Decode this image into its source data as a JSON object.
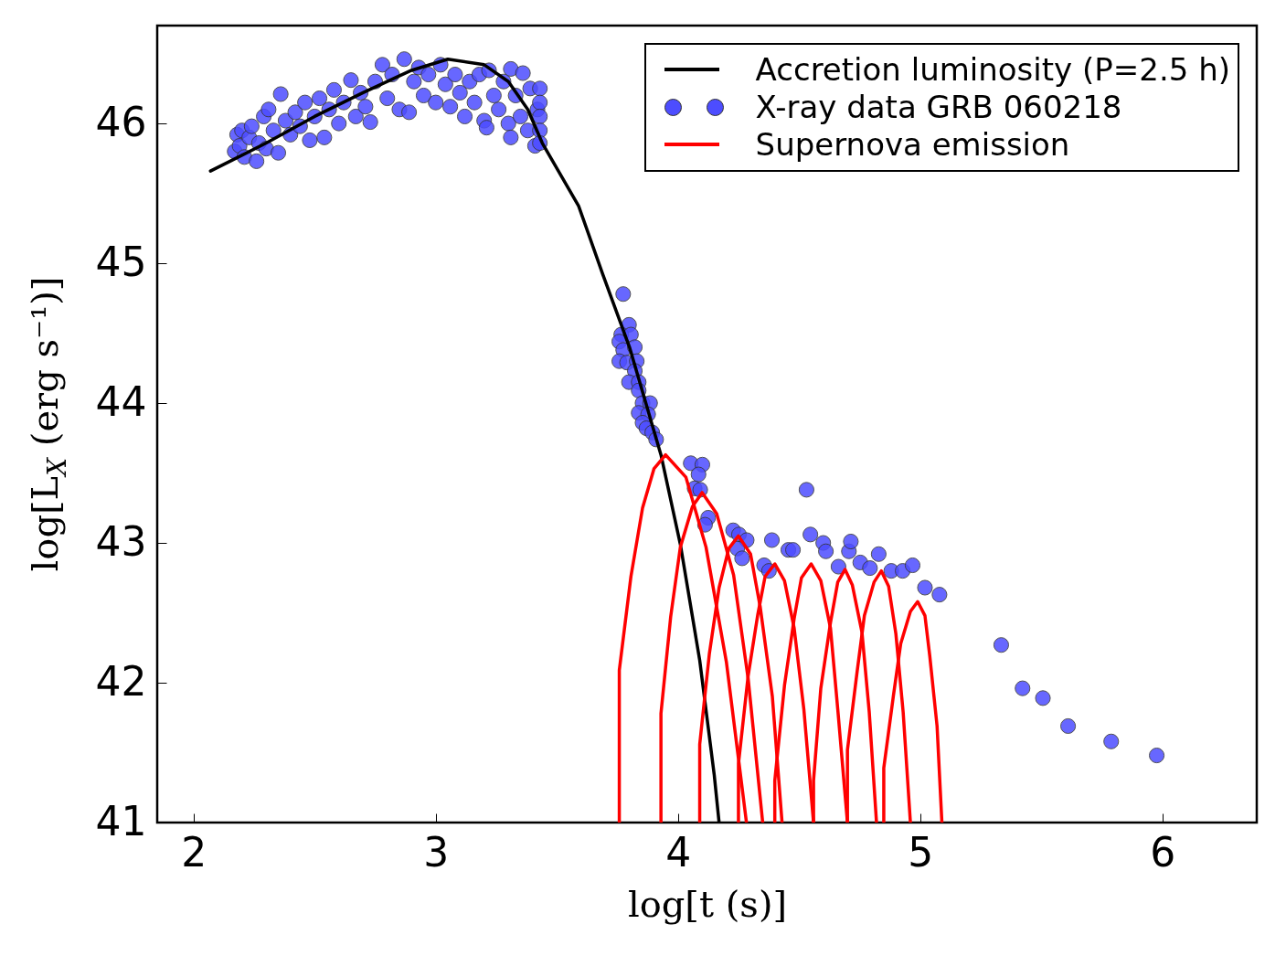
{
  "chart_data": {
    "type": "line",
    "xlabel": "log[t (s)]",
    "ylabel": "log[L$_{X}$ (erg s⁻¹)]",
    "xlim": [
      1.85,
      6.39
    ],
    "ylim": [
      41,
      46.7
    ],
    "xticks": [
      2,
      3,
      4,
      5,
      6
    ],
    "yticks": [
      41,
      42,
      43,
      44,
      45,
      46
    ],
    "grid": false,
    "legend": "top right",
    "series": [
      {
        "name": "Accretion luminosity (P=2.5 h)",
        "color": "#000000",
        "x": [
          2.07,
          2.3,
          2.5,
          2.7,
          2.9,
          3.05,
          3.2,
          3.3,
          3.38,
          3.44,
          3.59,
          3.69,
          3.8,
          3.93,
          4.01,
          4.09,
          4.15,
          4.17
        ],
        "values": [
          45.66,
          45.86,
          46.05,
          46.22,
          46.38,
          46.46,
          46.42,
          46.3,
          46.1,
          45.86,
          45.41,
          44.92,
          44.4,
          43.63,
          42.99,
          42.16,
          41.34,
          41
        ]
      },
      {
        "name": "X-ray data GRB 060218",
        "type": "scatter",
        "marker": "circle",
        "color": "#4d4dff",
        "x": [
          2.17,
          2.18,
          2.19,
          2.2,
          2.21,
          2.23,
          2.24,
          2.26,
          2.27,
          2.29,
          2.3,
          2.31,
          2.33,
          2.35,
          2.36,
          2.38,
          2.4,
          2.42,
          2.44,
          2.46,
          2.48,
          2.5,
          2.52,
          2.54,
          2.56,
          2.58,
          2.6,
          2.62,
          2.65,
          2.67,
          2.69,
          2.71,
          2.73,
          2.75,
          2.78,
          2.8,
          2.82,
          2.85,
          2.87,
          2.89,
          2.91,
          2.93,
          2.95,
          2.97,
          3.0,
          3.02,
          3.04,
          3.06,
          3.08,
          3.1,
          3.12,
          3.14,
          3.16,
          3.18,
          3.2,
          3.21,
          3.22,
          3.24,
          3.26,
          3.28,
          3.3,
          3.31,
          3.31,
          3.33,
          3.35,
          3.36,
          3.38,
          3.39,
          3.41,
          3.42,
          3.43,
          3.43,
          3.43,
          3.43,
          3.43,
          3.774,
          3.798,
          3.766,
          3.806,
          3.758,
          3.774,
          3.822,
          3.758,
          3.79,
          3.83,
          3.822,
          3.798,
          3.838,
          3.838,
          3.854,
          3.885,
          3.838,
          3.877,
          3.854,
          3.87,
          3.894,
          3.91,
          4.053,
          4.101,
          4.085,
          4.069,
          4.092,
          4.125,
          4.112,
          4.228,
          4.252,
          4.284,
          4.245,
          4.265,
          4.388,
          4.356,
          4.376,
          4.456,
          4.475,
          4.531,
          4.547,
          4.6,
          4.611,
          4.663,
          4.706,
          4.714,
          4.753,
          4.793,
          4.829,
          4.881,
          4.928,
          4.969,
          5.02,
          5.08,
          5.335,
          5.423,
          5.507,
          5.611,
          5.789,
          5.977
        ],
        "values": [
          45.8,
          45.92,
          45.84,
          45.95,
          45.76,
          45.9,
          45.98,
          45.73,
          45.86,
          46.05,
          45.82,
          46.1,
          45.95,
          45.79,
          46.21,
          46.02,
          45.92,
          46.08,
          45.98,
          46.15,
          45.88,
          46.05,
          46.18,
          45.9,
          46.1,
          46.24,
          46.0,
          46.15,
          46.31,
          46.05,
          46.22,
          46.12,
          46.01,
          46.3,
          46.42,
          46.18,
          46.35,
          46.1,
          46.46,
          46.08,
          46.3,
          46.4,
          46.2,
          46.35,
          46.15,
          46.42,
          46.28,
          46.12,
          46.35,
          46.22,
          46.05,
          46.3,
          46.15,
          46.35,
          46.02,
          45.97,
          46.38,
          46.2,
          46.1,
          46.3,
          46.0,
          46.39,
          45.9,
          46.2,
          46.05,
          46.36,
          45.95,
          46.25,
          45.84,
          46.1,
          46.25,
          46.15,
          46.05,
          45.95,
          45.86,
          44.78,
          44.56,
          44.49,
          44.49,
          44.44,
          44.38,
          44.4,
          44.3,
          44.29,
          44.3,
          44.23,
          44.15,
          44.15,
          44.09,
          44.0,
          44.0,
          43.93,
          43.92,
          43.86,
          43.82,
          43.79,
          43.74,
          43.57,
          43.56,
          43.49,
          43.39,
          43.38,
          43.18,
          43.13,
          43.09,
          43.06,
          43.02,
          42.96,
          42.89,
          43.02,
          42.84,
          42.8,
          42.95,
          42.95,
          43.38,
          43.06,
          43.0,
          42.94,
          42.83,
          42.94,
          43.01,
          42.86,
          42.82,
          42.92,
          42.8,
          42.8,
          42.84,
          42.68,
          42.63,
          42.27,
          41.96,
          41.89,
          41.69,
          41.58,
          41.48
        ]
      },
      {
        "name": "Supernova emission",
        "color": "#ff0000",
        "x": [
          3.758,
          3.758,
          3.806,
          3.854,
          3.901,
          3.949,
          4.033,
          4.116,
          4.2,
          4.283
        ],
        "values": [
          41,
          42.09,
          42.76,
          43.25,
          43.53,
          43.63,
          43.47,
          42.97,
          42.15,
          41
        ]
      },
      {
        "type": "line",
        "color": "#ff0000",
        "x": [
          3.93,
          3.93,
          3.97,
          4.01,
          4.06,
          4.1,
          4.16,
          4.23,
          4.29,
          4.35
        ],
        "values": [
          41,
          41.78,
          42.47,
          42.97,
          43.26,
          43.36,
          43.21,
          42.77,
          42.03,
          41
        ]
      },
      {
        "type": "line",
        "color": "#ff0000",
        "x": [
          4.09,
          4.09,
          4.13,
          4.17,
          4.21,
          4.25,
          4.3,
          4.34,
          4.39,
          4.43
        ],
        "values": [
          41,
          41.56,
          42.21,
          42.68,
          42.96,
          43.05,
          42.92,
          42.54,
          41.9,
          41
        ]
      },
      {
        "type": "line",
        "color": "#ff0000",
        "x": [
          4.25,
          4.25,
          4.29,
          4.33,
          4.36,
          4.4,
          4.44,
          4.48,
          4.52,
          4.56
        ],
        "values": [
          41,
          41.42,
          42.05,
          42.49,
          42.76,
          42.85,
          42.73,
          42.39,
          41.81,
          41
        ]
      },
      {
        "type": "line",
        "color": "#ff0000",
        "x": [
          4.4,
          4.4,
          4.44,
          4.48,
          4.51,
          4.55,
          4.59,
          4.63,
          4.66,
          4.7
        ],
        "values": [
          41,
          41.3,
          41.98,
          42.46,
          42.75,
          42.85,
          42.73,
          42.39,
          41.81,
          41
        ]
      },
      {
        "type": "line",
        "color": "#ff0000",
        "x": [
          4.56,
          4.56,
          4.59,
          4.63,
          4.66,
          4.69,
          4.72,
          4.76,
          4.79,
          4.82
        ],
        "values": [
          41,
          41.3,
          41.96,
          42.43,
          42.72,
          42.81,
          42.7,
          42.36,
          41.79,
          41
        ]
      },
      {
        "type": "line",
        "color": "#ff0000",
        "x": [
          4.7,
          4.7,
          4.74,
          4.77,
          4.81,
          4.84,
          4.87,
          4.9,
          4.93,
          4.96
        ],
        "values": [
          41,
          41.52,
          42.08,
          42.48,
          42.72,
          42.8,
          42.69,
          42.35,
          41.79,
          41
        ]
      },
      {
        "type": "line",
        "color": "#ff0000",
        "x": [
          4.85,
          4.85,
          4.89,
          4.92,
          4.96,
          4.99,
          5.02,
          5.04,
          5.07,
          5.09
        ],
        "values": [
          41,
          41.39,
          41.91,
          42.28,
          42.51,
          42.58,
          42.48,
          42.19,
          41.69,
          41
        ]
      }
    ]
  }
}
